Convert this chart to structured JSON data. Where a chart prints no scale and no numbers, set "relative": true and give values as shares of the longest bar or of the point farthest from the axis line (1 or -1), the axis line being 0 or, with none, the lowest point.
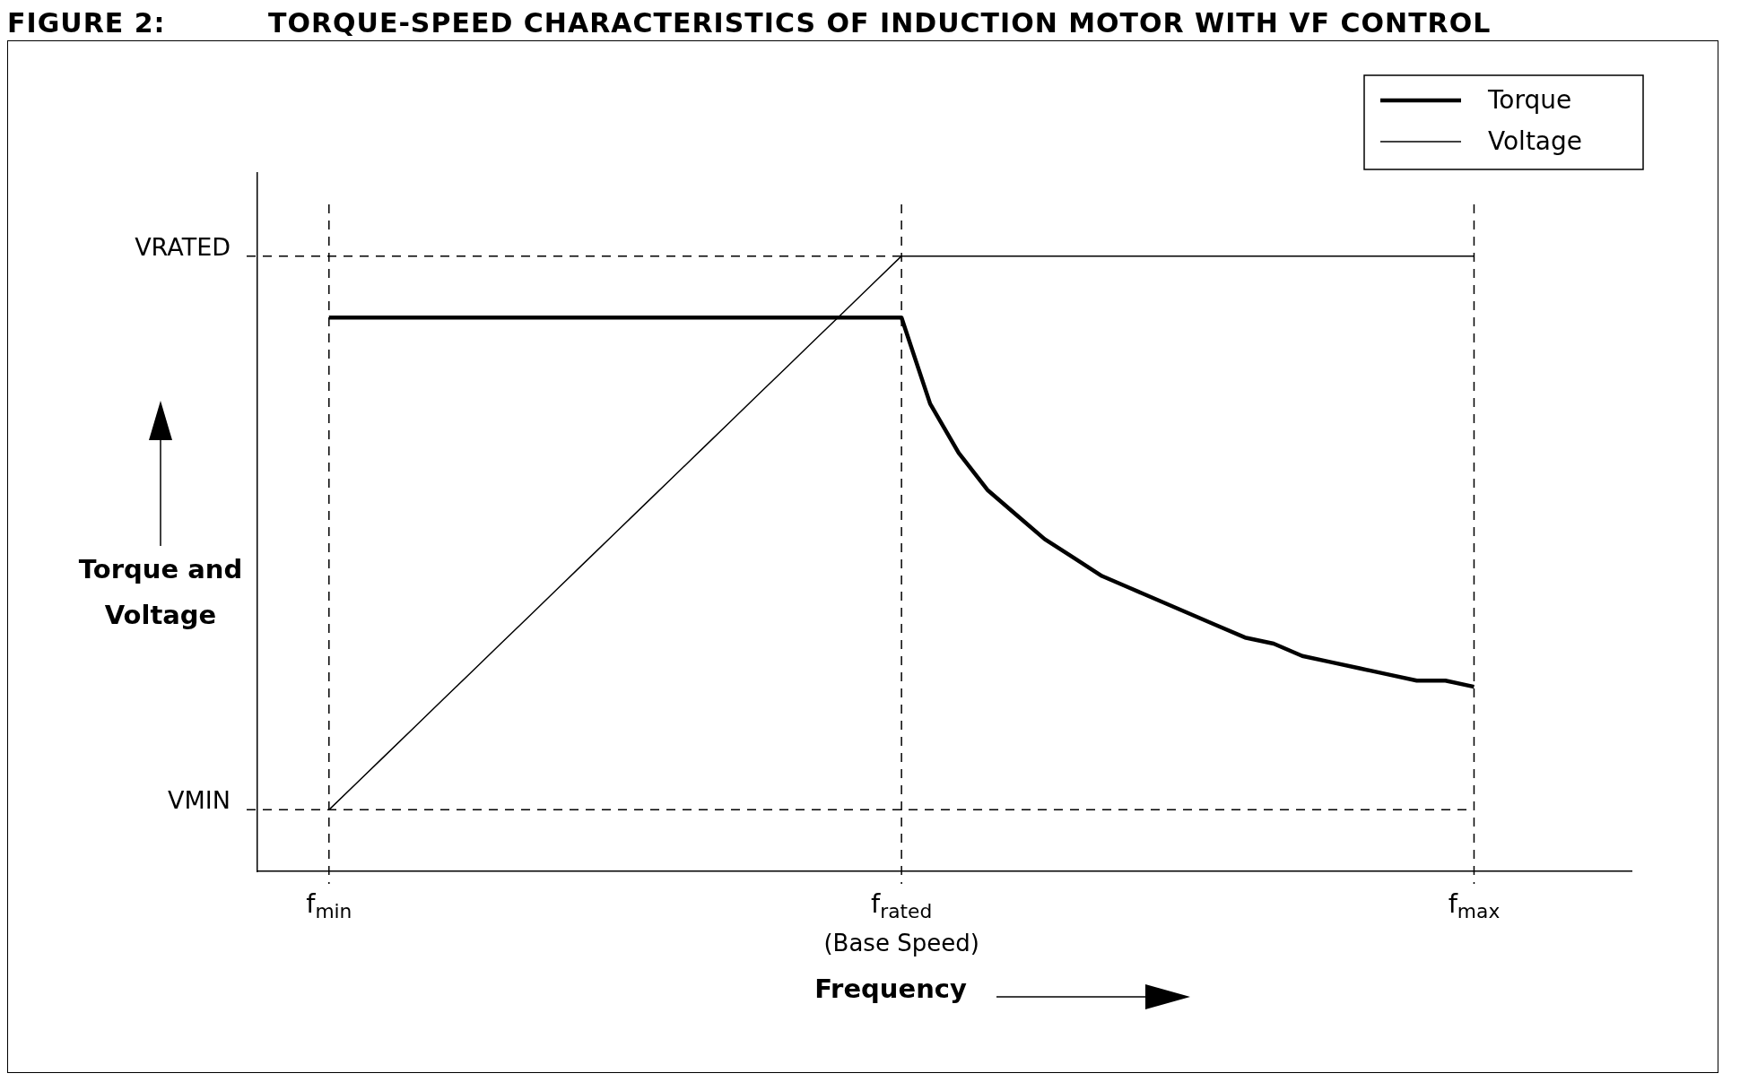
{
  "chart_data": {
    "type": "line",
    "title": "FIGURE 2:          TORQUE-SPEED CHARACTERISTICS OF INDUCTION MOTOR WITH VF CONTROL",
    "xlabel": "Frequency",
    "ylabel": "Torque and Voltage",
    "relative": true,
    "categories": [
      "f$_{min}$",
      null,
      null,
      null,
      null,
      null,
      null,
      null,
      null,
      null,
      null,
      null,
      null,
      null,
      null,
      null,
      null,
      null,
      null,
      null,
      "f$_{rated}$\n(Base Speed)",
      null,
      null,
      null,
      null,
      null,
      null,
      null,
      null,
      null,
      null,
      null,
      null,
      null,
      null,
      null,
      null,
      null,
      null,
      null,
      "f$_{max}$"
    ],
    "series": [
      {
        "name": "Torque",
        "color": "#000000",
        "values": [
          0.9,
          0.9,
          0.9,
          0.9,
          0.9,
          0.9,
          0.9,
          0.9,
          0.9,
          0.9,
          0.9,
          0.9,
          0.9,
          0.9,
          0.9,
          0.9,
          0.9,
          0.9,
          0.9,
          0.9,
          0.9,
          0.76,
          0.68,
          0.62,
          0.58,
          0.54,
          0.51,
          0.48,
          0.46,
          0.44,
          0.42,
          0.4,
          0.38,
          0.37,
          0.35,
          0.34,
          0.33,
          0.32,
          0.31,
          0.31,
          0.3
        ]
      },
      {
        "name": "Voltage",
        "color": "#000000",
        "values": [
          0.1,
          0.145,
          0.19,
          0.235,
          0.28,
          0.325,
          0.37,
          0.415,
          0.46,
          0.505,
          0.55,
          0.595,
          0.64,
          0.685,
          0.73,
          0.775,
          0.82,
          0.865,
          0.91,
          0.955,
          1.0,
          1.0,
          1.0,
          1.0,
          1.0,
          1.0,
          1.0,
          1.0,
          1.0,
          1.0,
          1.0,
          1.0,
          1.0,
          1.0,
          1.0,
          1.0,
          1.0,
          1.0,
          1.0,
          1.0,
          1.0
        ]
      }
    ],
    "ref_lines": [
      {
        "axis": "y",
        "value": 1.0,
        "label": "VRATED",
        "line_style": "dashed"
      },
      {
        "axis": "y",
        "value": 0.1,
        "label": "VMIN",
        "line_style": "dashed"
      },
      {
        "axis": "x",
        "value": "f$_{min}$",
        "line_style": "dashed"
      },
      {
        "axis": "x",
        "value": "f$_{rated}$\n(Base Speed)",
        "line_style": "dashed"
      },
      {
        "axis": "x",
        "value": "f$_{max}$",
        "line_style": "dashed"
      }
    ],
    "legend": "top right",
    "grid": false
  }
}
